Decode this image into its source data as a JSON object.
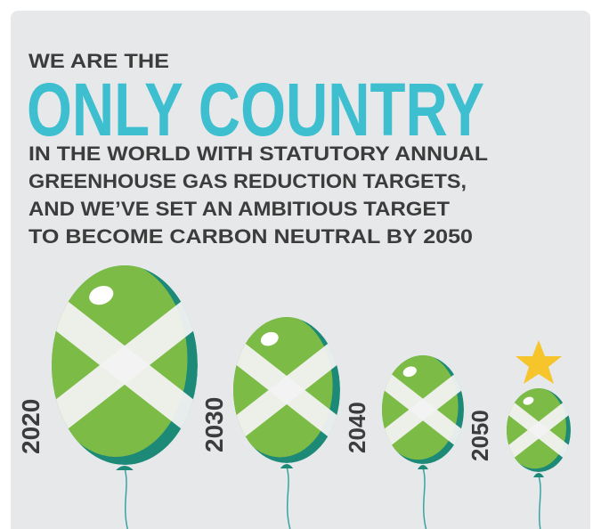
{
  "header": {
    "intro": "WE ARE THE",
    "headline": "ONLY COUNTRY",
    "body": [
      "IN THE WORLD WITH STATUTORY ANNUAL",
      "GREENHOUSE GAS REDUCTION TARGETS,",
      "AND WE’VE SET AN AMBITIOUS TARGET",
      "TO BECOME CARBON NEUTRAL BY 2050"
    ]
  },
  "balloons": [
    {
      "year": "2020"
    },
    {
      "year": "2030"
    },
    {
      "year": "2040"
    },
    {
      "year": "2050"
    }
  ]
}
